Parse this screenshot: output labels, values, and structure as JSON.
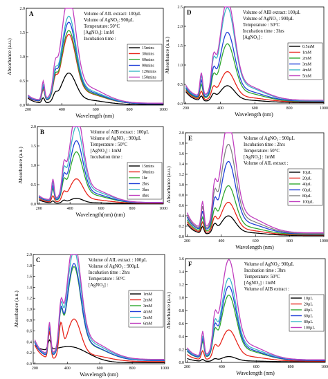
{
  "chart_data": [
    {
      "panel_label": "A",
      "type": "line",
      "xlabel": "Wavelength (nm)",
      "ylabel": "Absorbance (a.u.)",
      "xlim": [
        190,
        1000
      ],
      "ylim": [
        0,
        2.0
      ],
      "xticks": [
        200,
        400,
        600,
        800,
        1000
      ],
      "yticks": [
        0.0,
        0.5,
        1.0,
        1.5,
        2.0
      ],
      "conditions": [
        "Volume of AIL extract: 100µL",
        "Volume of AgNO₃: 900µL",
        "Temperature: 50°C",
        "[AgNO₃]: 1mM",
        "Incubation time :"
      ],
      "legend_position": "right",
      "shape": "spr",
      "series": [
        {
          "name": "15mins",
          "color": "#000000",
          "peak": 0.57,
          "shoulder": 0.12,
          "start": 0.13,
          "tail": 0.01
        },
        {
          "name": "30mins",
          "color": "#e8261c",
          "peak": 1.25,
          "shoulder": 0.27,
          "start": 0.13,
          "tail": 0.03
        },
        {
          "name": "60mins",
          "color": "#2fa82f",
          "peak": 1.32,
          "shoulder": 0.3,
          "start": 0.14,
          "tail": 0.03
        },
        {
          "name": "90mins",
          "color": "#2040d8",
          "peak": 1.47,
          "shoulder": 0.33,
          "start": 0.14,
          "tail": 0.03
        },
        {
          "name": "120mins",
          "color": "#3bb8c8",
          "peak": 1.57,
          "shoulder": 0.35,
          "start": 0.15,
          "tail": 0.04
        },
        {
          "name": "150mins",
          "color": "#c03fbf",
          "peak": 1.95,
          "shoulder": 0.42,
          "start": 0.16,
          "tail": 0.04
        }
      ]
    },
    {
      "panel_label": "D",
      "type": "line",
      "xlabel": "Wavelength (nm)",
      "ylabel": "Absorbance (a.u.)",
      "xlim": [
        190,
        1000
      ],
      "ylim": [
        0,
        2.5
      ],
      "xticks": [
        200,
        400,
        600,
        800,
        1000
      ],
      "yticks": [
        0.0,
        0.5,
        1.0,
        1.5,
        2.0,
        2.5
      ],
      "conditions": [
        "Volume of AIB extract: 100µL",
        "Volume of AgNO₃ : 900µL",
        "Temperature : 50°C",
        "Incubation time : 3hrs",
        "[AgNO₃] :"
      ],
      "legend_position": "right",
      "shape": "spr",
      "series": [
        {
          "name": "0.5mM",
          "color": "#000000",
          "peak": 0.38,
          "shoulder": 0.14,
          "start": 0.28,
          "tail": 0.03
        },
        {
          "name": "1mM",
          "color": "#e8261c",
          "peak": 0.68,
          "shoulder": 0.24,
          "start": 0.3,
          "tail": 0.05
        },
        {
          "name": "2mM",
          "color": "#2fa82f",
          "peak": 1.3,
          "shoulder": 0.4,
          "start": 0.32,
          "tail": 0.06
        },
        {
          "name": "3mM",
          "color": "#2040d8",
          "peak": 1.55,
          "shoulder": 0.5,
          "start": 0.34,
          "tail": 0.07
        },
        {
          "name": "4mM",
          "color": "#3bb8c8",
          "peak": 2.1,
          "shoulder": 0.6,
          "start": 0.36,
          "tail": 0.08
        },
        {
          "name": "5mM",
          "color": "#c03fbf",
          "peak": 2.25,
          "shoulder": 0.66,
          "start": 0.38,
          "tail": 0.09
        }
      ]
    },
    {
      "panel_label": "B",
      "type": "line",
      "xlabel": "Wavelength(nm) (nm)",
      "ylabel": "Absorbance (a.u.)",
      "xlim": [
        190,
        1000
      ],
      "ylim": [
        0,
        2.0
      ],
      "xticks": [
        200,
        400,
        600,
        800,
        1000
      ],
      "yticks": [
        0.0,
        0.5,
        1.0,
        1.5,
        2.0
      ],
      "conditions": [
        "Volume of AIB extract : 100µL",
        "Volume of AgNO₃ : 900µL",
        "Temperature : 50°C",
        "[AgNO₃] : 1mM",
        "Incubation time :"
      ],
      "legend_position": "right",
      "shape": "spr",
      "series": [
        {
          "name": "15mins",
          "color": "#000000",
          "peak": 0.12,
          "shoulder": 0.06,
          "start": 0.1,
          "tail": 0.01
        },
        {
          "name": "30mins",
          "color": "#e8261c",
          "peak": 0.55,
          "shoulder": 0.18,
          "start": 0.12,
          "tail": 0.02
        },
        {
          "name": "1hr",
          "color": "#2fa82f",
          "peak": 1.15,
          "shoulder": 0.35,
          "start": 0.14,
          "tail": 0.03
        },
        {
          "name": "2hrs",
          "color": "#2040d8",
          "peak": 1.4,
          "shoulder": 0.42,
          "start": 0.15,
          "tail": 0.03
        },
        {
          "name": "3hrs",
          "color": "#3bb8c8",
          "peak": 1.72,
          "shoulder": 0.5,
          "start": 0.16,
          "tail": 0.04
        },
        {
          "name": "4hrs",
          "color": "#c03fbf",
          "peak": 2.02,
          "shoulder": 0.58,
          "start": 0.17,
          "tail": 0.04
        }
      ]
    },
    {
      "panel_label": "E",
      "type": "line",
      "xlabel": "Wavelength (nm)",
      "ylabel": "Absorbance (a.u.)",
      "xlim": [
        190,
        1000
      ],
      "ylim": [
        0,
        2.0
      ],
      "xticks": [
        200,
        400,
        600,
        800,
        1000
      ],
      "yticks": [
        0.0,
        0.2,
        0.4,
        0.6,
        0.8,
        1.0,
        1.2,
        1.4,
        1.6,
        1.8,
        2.0
      ],
      "conditions": [
        "Volume of AgNO₃ : 900µL",
        "Incubation time : 2hrs",
        "Temperature: 50°C",
        "[AgNO₃] : 1mM",
        "Volume of AIL extract :"
      ],
      "legend_position": "right",
      "shape": "spr",
      "series": [
        {
          "name": "10µL",
          "color": "#000000",
          "peak": 0.33,
          "shoulder": 0.15,
          "start": 0.22,
          "tail": 0.02
        },
        {
          "name": "20µL",
          "color": "#e8261c",
          "peak": 0.55,
          "shoulder": 0.22,
          "start": 0.25,
          "tail": 0.03
        },
        {
          "name": "40µL",
          "color": "#2fa82f",
          "peak": 0.82,
          "shoulder": 0.3,
          "start": 0.28,
          "tail": 0.04
        },
        {
          "name": "60µL",
          "color": "#2040d8",
          "peak": 1.22,
          "shoulder": 0.4,
          "start": 0.32,
          "tail": 0.05
        },
        {
          "name": "80µL",
          "color": "#808080",
          "peak": 1.5,
          "shoulder": 0.48,
          "start": 0.35,
          "tail": 0.06
        },
        {
          "name": "100µL",
          "color": "#c03fbf",
          "peak": 1.87,
          "shoulder": 0.56,
          "start": 0.38,
          "tail": 0.07
        }
      ]
    },
    {
      "panel_label": "C",
      "type": "line",
      "xlabel": "Wavelength (nm)",
      "ylabel": "Absorbance (a.u.)",
      "xlim": [
        190,
        1000
      ],
      "ylim": [
        0,
        2.0
      ],
      "xticks": [
        200,
        400,
        600,
        800,
        1000
      ],
      "yticks": [
        0.0,
        0.2,
        0.4,
        0.6,
        0.8,
        1.0,
        1.2,
        1.4,
        1.6,
        1.8,
        2.0
      ],
      "conditions": [
        "Volume of AIL extract : 100µL",
        "Volume of AgNO₃ : 900µL",
        "Incubation time : 2hrs",
        "Temperature : 50°C",
        "[AgNO₃] :"
      ],
      "legend_position": "right",
      "shape": "ramp",
      "series": [
        {
          "name": "1mM",
          "color": "#000000",
          "peak": 0.3,
          "shoulder": 0.55,
          "start": 0.28,
          "tail": 0.02
        },
        {
          "name": "2mM",
          "color": "#e8261c",
          "peak": 0.68,
          "shoulder": 0.55,
          "start": 0.3,
          "tail": 0.04
        },
        {
          "name": "3mM",
          "color": "#2fa82f",
          "peak": 1.5,
          "shoulder": 0.58,
          "start": 0.32,
          "tail": 0.06
        },
        {
          "name": "4mM",
          "color": "#2040d8",
          "peak": 1.55,
          "shoulder": 0.6,
          "start": 0.32,
          "tail": 0.06
        },
        {
          "name": "5mM",
          "color": "#3bb8c8",
          "peak": 1.75,
          "shoulder": 0.62,
          "start": 0.34,
          "tail": 0.07
        },
        {
          "name": "6mM",
          "color": "#c03fbf",
          "peak": 1.9,
          "shoulder": 0.64,
          "start": 0.35,
          "tail": 0.08
        }
      ]
    },
    {
      "panel_label": "F",
      "type": "line",
      "xlabel": "Wavelength (nm)",
      "ylabel": "Absorbance (a.u.)",
      "xlim": [
        190,
        1000
      ],
      "ylim": [
        0,
        1.6
      ],
      "xticks": [
        200,
        400,
        600,
        800,
        1000
      ],
      "yticks": [
        0.0,
        0.2,
        0.4,
        0.6,
        0.8,
        1.0,
        1.2,
        1.4,
        1.6
      ],
      "conditions": [
        "Volume of AgNO₃: 900µL",
        "Incubation time : 3hrs",
        "Temperature: 50°C",
        "[AgNO₃] : 1mM",
        "Volume of AIB extract :"
      ],
      "legend_position": "right",
      "shape": "spr",
      "series": [
        {
          "name": "10µL",
          "color": "#000000",
          "peak": 0.07,
          "shoulder": 0.03,
          "start": 0.05,
          "tail": 0.01
        },
        {
          "name": "20µL",
          "color": "#e8261c",
          "peak": 0.42,
          "shoulder": 0.15,
          "start": 0.1,
          "tail": 0.02
        },
        {
          "name": "40µL",
          "color": "#2fa82f",
          "peak": 0.88,
          "shoulder": 0.28,
          "start": 0.14,
          "tail": 0.03
        },
        {
          "name": "60µL",
          "color": "#2040d8",
          "peak": 1.0,
          "shoulder": 0.32,
          "start": 0.15,
          "tail": 0.03
        },
        {
          "name": "80µL",
          "color": "#3bb8c8",
          "peak": 1.1,
          "shoulder": 0.35,
          "start": 0.16,
          "tail": 0.04
        },
        {
          "name": "100µL",
          "color": "#c03fbf",
          "peak": 1.35,
          "shoulder": 0.42,
          "start": 0.18,
          "tail": 0.04
        }
      ]
    }
  ]
}
